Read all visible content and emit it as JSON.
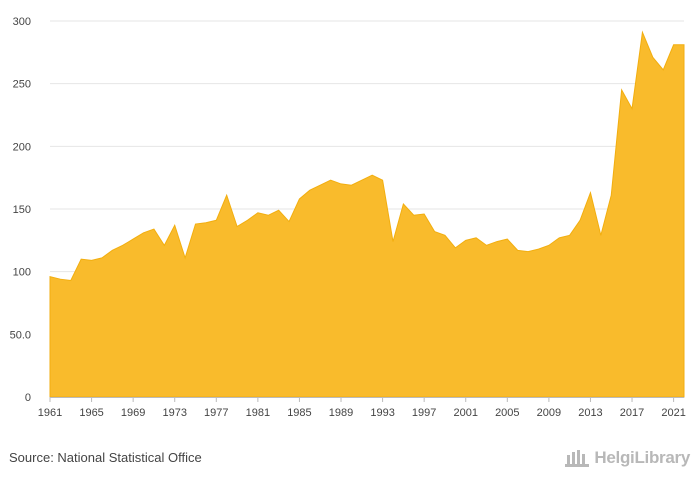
{
  "source": "Source: National Statistical Office",
  "brand": "HelgiLibrary",
  "colors": {
    "area": "#F9BB2C",
    "area_edge": "#F2AE0F",
    "grid": "#e6e6e6",
    "axis": "#bbbbbb",
    "logo": "#b8b8b8"
  },
  "chart_data": {
    "type": "area",
    "title": "",
    "xlabel": "",
    "ylabel": "",
    "ylim": [
      0,
      300
    ],
    "yticks": [
      0,
      50,
      100,
      150,
      200,
      250,
      300
    ],
    "ytick_labels": [
      "0",
      "50.0",
      "100",
      "150",
      "200",
      "250",
      "300"
    ],
    "xtick_labels": [
      "1961",
      "1965",
      "1969",
      "1973",
      "1977",
      "1981",
      "1985",
      "1989",
      "1993",
      "1997",
      "2001",
      "2005",
      "2009",
      "2013",
      "2017",
      "2021"
    ],
    "grid": "horizontal",
    "legend": "none",
    "x": [
      1961,
      1962,
      1963,
      1964,
      1965,
      1966,
      1967,
      1968,
      1969,
      1970,
      1971,
      1972,
      1973,
      1974,
      1975,
      1976,
      1977,
      1978,
      1979,
      1980,
      1981,
      1982,
      1983,
      1984,
      1985,
      1986,
      1987,
      1988,
      1989,
      1990,
      1991,
      1992,
      1993,
      1994,
      1995,
      1996,
      1997,
      1998,
      1999,
      2000,
      2001,
      2002,
      2003,
      2004,
      2005,
      2006,
      2007,
      2008,
      2009,
      2010,
      2011,
      2012,
      2013,
      2014,
      2015,
      2016,
      2017,
      2018,
      2019,
      2020,
      2021,
      2022
    ],
    "values": [
      96,
      94,
      93,
      110,
      109,
      111,
      117,
      121,
      126,
      131,
      134,
      121,
      137,
      111,
      138,
      139,
      141,
      161,
      136,
      141,
      147,
      145,
      149,
      140,
      158,
      165,
      169,
      173,
      170,
      169,
      173,
      177,
      173,
      124,
      154,
      145,
      146,
      132,
      129,
      119,
      125,
      127,
      121,
      124,
      126,
      117,
      116,
      118,
      121,
      127,
      129,
      141,
      163,
      129,
      161,
      245,
      230,
      291,
      271,
      261,
      281,
      281
    ]
  }
}
